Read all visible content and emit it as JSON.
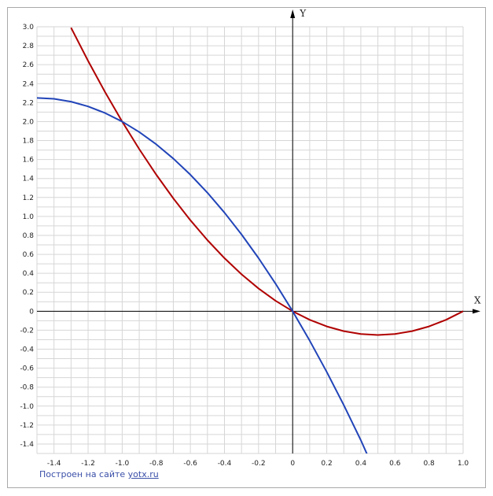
{
  "chart_data": {
    "type": "line",
    "title": "",
    "xlabel": "X",
    "ylabel": "Y",
    "xlim": [
      -1.5,
      1.0
    ],
    "ylim": [
      -1.5,
      3.0
    ],
    "x_ticks": [
      -1.4,
      -1.2,
      -1.0,
      -0.8,
      -0.6,
      -0.4,
      -0.2,
      0,
      0.2,
      0.4,
      0.6,
      0.8,
      1.0
    ],
    "x_tick_labels": [
      "-1.4",
      "-1.2",
      "-1.0",
      "-0.8",
      "-0.6",
      "-0.4",
      "-0.2",
      "0",
      "0.2",
      "0.4",
      "0.6",
      "0.8",
      "1.0"
    ],
    "y_ticks": [
      3.0,
      2.8,
      2.6,
      2.4,
      2.2,
      2.0,
      1.8,
      1.6,
      1.4,
      1.2,
      1.0,
      0.8,
      0.6,
      0.4,
      0.2,
      0,
      -0.2,
      -0.4,
      -0.6,
      -0.8,
      -1.0,
      -1.2,
      -1.4
    ],
    "y_tick_labels": [
      "3.0",
      "2.8",
      "2.6",
      "2.4",
      "2.2",
      "2.0",
      "1.8",
      "1.6",
      "1.4",
      "1.2",
      "1.0",
      "0.8",
      "0.6",
      "0.4",
      "0.2",
      "0",
      "-0.2",
      "-0.4",
      "-0.6",
      "-0.8",
      "-1.0",
      "-1.2",
      "-1.4"
    ],
    "grid": true,
    "series": [
      {
        "color": "#b00000",
        "x": [
          -1.3,
          -1.2,
          -1.1,
          -1.0,
          -0.9,
          -0.8,
          -0.7,
          -0.6,
          -0.5,
          -0.4,
          -0.3,
          -0.2,
          -0.1,
          0,
          0.1,
          0.2,
          0.3,
          0.4,
          0.5,
          0.6,
          0.7,
          0.8,
          0.9,
          1.0
        ],
        "y": [
          2.99,
          2.64,
          2.31,
          2.0,
          1.71,
          1.44,
          1.19,
          0.96,
          0.75,
          0.56,
          0.39,
          0.24,
          0.11,
          0,
          -0.09,
          -0.16,
          -0.21,
          -0.24,
          -0.25,
          -0.24,
          -0.21,
          -0.16,
          -0.09,
          0
        ]
      },
      {
        "color": "#2144b8",
        "x": [
          -1.5,
          -1.4,
          -1.3,
          -1.2,
          -1.1,
          -1.0,
          -0.9,
          -0.8,
          -0.7,
          -0.6,
          -0.5,
          -0.4,
          -0.3,
          -0.2,
          -0.1,
          0,
          0.1,
          0.2,
          0.3,
          0.4,
          0.44
        ],
        "y": [
          2.25,
          2.24,
          2.21,
          2.16,
          2.09,
          2.0,
          1.89,
          1.76,
          1.61,
          1.44,
          1.25,
          1.04,
          0.81,
          0.56,
          0.29,
          0,
          -0.31,
          -0.64,
          -0.99,
          -1.36,
          -1.5216
        ]
      }
    ]
  },
  "credit": {
    "text": "Построен на сайте",
    "link": "yotx.ru"
  }
}
